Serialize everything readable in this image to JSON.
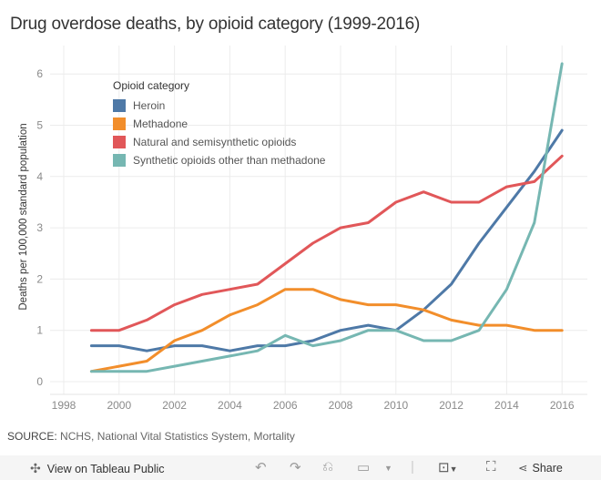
{
  "title": "Drug overdose deaths, by opioid category (1999-2016)",
  "source_label": "SOURCE:",
  "source_text": "NCHS, National Vital Statistics System, Mortality",
  "legend": {
    "title": "Opioid category",
    "items": [
      {
        "label": "Heroin",
        "color": "#4e79a7"
      },
      {
        "label": "Methadone",
        "color": "#f28e2b"
      },
      {
        "label": "Natural and semisynthetic opioids",
        "color": "#e15759"
      },
      {
        "label": "Synthetic opioids other than methadone",
        "color": "#76b7b2"
      }
    ]
  },
  "toolbar": {
    "view_label": "View on Tableau Public",
    "share_label": "Share",
    "icons": [
      "tableau-logo-icon",
      "undo-icon",
      "redo-icon",
      "revert-icon",
      "pause-icon",
      "dropdown-icon",
      "download-icon",
      "fullscreen-icon",
      "share-icon"
    ]
  },
  "chart_data": {
    "type": "line",
    "title": "Drug overdose deaths, by opioid category (1999-2016)",
    "xlabel": "",
    "ylabel": "Deaths per 100,000 standard population",
    "x": [
      1999,
      2000,
      2001,
      2002,
      2003,
      2004,
      2005,
      2006,
      2007,
      2008,
      2009,
      2010,
      2011,
      2012,
      2013,
      2014,
      2015,
      2016
    ],
    "xlim": [
      1998,
      2017
    ],
    "ylim": [
      0,
      6.5
    ],
    "xticks": [
      "1998",
      "2000",
      "2002",
      "2004",
      "2006",
      "2008",
      "2010",
      "2012",
      "2014",
      "2016"
    ],
    "yticks": [
      "0",
      "1",
      "2",
      "3",
      "4",
      "5",
      "6"
    ],
    "grid": true,
    "legend_position": "top-left",
    "series": [
      {
        "name": "Heroin",
        "color": "#4e79a7",
        "values": [
          0.7,
          0.7,
          0.6,
          0.7,
          0.7,
          0.6,
          0.7,
          0.7,
          0.8,
          1.0,
          1.1,
          1.0,
          1.4,
          1.9,
          2.7,
          3.4,
          4.1,
          4.9
        ]
      },
      {
        "name": "Methadone",
        "color": "#f28e2b",
        "values": [
          0.2,
          0.3,
          0.4,
          0.8,
          1.0,
          1.3,
          1.5,
          1.8,
          1.8,
          1.6,
          1.5,
          1.5,
          1.4,
          1.2,
          1.1,
          1.1,
          1.0,
          1.0
        ]
      },
      {
        "name": "Natural and semisynthetic opioids",
        "color": "#e15759",
        "values": [
          1.0,
          1.0,
          1.2,
          1.5,
          1.7,
          1.8,
          1.9,
          2.3,
          2.7,
          3.0,
          3.1,
          3.5,
          3.7,
          3.5,
          3.5,
          3.8,
          3.9,
          4.4
        ]
      },
      {
        "name": "Synthetic opioids other than methadone",
        "color": "#76b7b2",
        "values": [
          0.2,
          0.2,
          0.2,
          0.3,
          0.4,
          0.5,
          0.6,
          0.9,
          0.7,
          0.8,
          1.0,
          1.0,
          0.8,
          0.8,
          1.0,
          1.8,
          3.1,
          6.2
        ]
      }
    ]
  }
}
